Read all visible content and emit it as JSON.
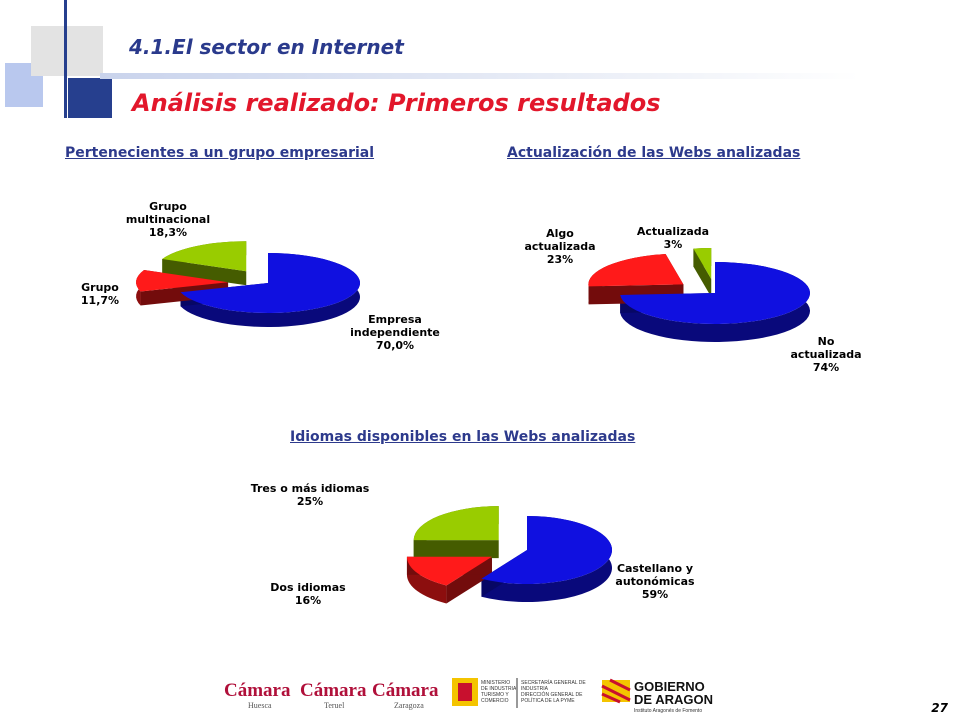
{
  "header": {
    "section_title": "4.1.El sector en Internet",
    "slide_title": "Análisis realizado: Primeros resultados"
  },
  "colors": {
    "title_blue": "#2a3a8c",
    "title_red": "#e2172b",
    "slice_blue": "#1010e0",
    "slice_red": "#ff1a1a",
    "slice_green": "#99cc00"
  },
  "chart_data": [
    {
      "type": "pie",
      "title": "Pertenecientes a un grupo empresarial",
      "slices": [
        {
          "label": [
            "Empresa",
            "independiente",
            "70,0%"
          ],
          "value": 70.0,
          "color": "#1010e0"
        },
        {
          "label": [
            "Grupo",
            "11,7%"
          ],
          "value": 11.7,
          "color": "#ff1a1a"
        },
        {
          "label": [
            "Grupo",
            "multinacional",
            "18,3%"
          ],
          "value": 18.3,
          "color": "#99cc00"
        }
      ]
    },
    {
      "type": "pie",
      "title": "Actualización de las Webs analizadas",
      "slices": [
        {
          "label": [
            "No",
            "actualizada",
            "74%"
          ],
          "value": 74,
          "color": "#1010e0"
        },
        {
          "label": [
            "Algo",
            "actualizada",
            "23%"
          ],
          "value": 23,
          "color": "#ff1a1a"
        },
        {
          "label": [
            "Actualizada",
            "3%"
          ],
          "value": 3,
          "color": "#99cc00"
        }
      ]
    },
    {
      "type": "pie",
      "title": "Idiomas disponibles en las Webs analizadas",
      "slices": [
        {
          "label": [
            "Castellano y",
            "autonómicas",
            "59%"
          ],
          "value": 59,
          "color": "#1010e0"
        },
        {
          "label": [
            "Dos idiomas",
            "16%"
          ],
          "value": 16,
          "color": "#ff1a1a"
        },
        {
          "label": [
            "Tres o más idiomas",
            "25%"
          ],
          "value": 25,
          "color": "#99cc00"
        }
      ]
    }
  ],
  "footer": {
    "logos": [
      {
        "name": "Cámara",
        "sub": "Huesca"
      },
      {
        "name": "Cámara",
        "sub": "Teruel"
      },
      {
        "name": "Cámara",
        "sub": "Zaragoza"
      }
    ],
    "ministry": [
      "MINISTERIO",
      "DE INDUSTRIA,",
      "TURISMO Y",
      "COMERCIO"
    ],
    "secretaria": [
      "SECRETARÍA GENERAL DE",
      "INDUSTRIA",
      "DIRECCIÓN GENERAL DE",
      "POLÍTICA DE LA PYME"
    ],
    "gobierno": [
      "GOBIERNO",
      "DE ARAGON"
    ],
    "instituto": "Instituto Aragonés de Fomento"
  },
  "page_number": "27"
}
